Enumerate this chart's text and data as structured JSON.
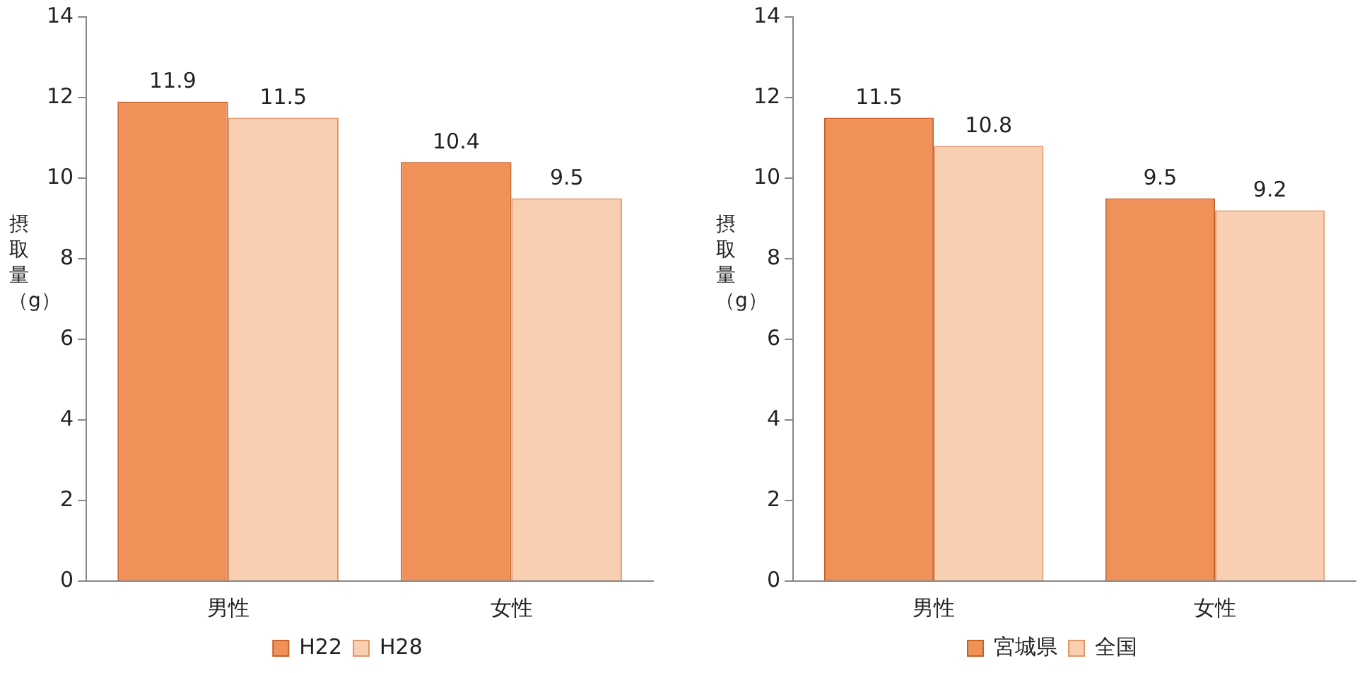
{
  "chart_data": [
    {
      "type": "bar",
      "ylabel": "摂取量（g）",
      "categories": [
        "男性",
        "女性"
      ],
      "series": [
        {
          "name": "H22",
          "color": "#f0915a",
          "values": [
            11.9,
            10.4
          ]
        },
        {
          "name": "H28",
          "color": "#f8cfb0",
          "values": [
            11.5,
            9.5
          ]
        }
      ],
      "ylim": [
        0,
        14
      ],
      "yticks": [
        0,
        2,
        4,
        6,
        8,
        10,
        12,
        14
      ],
      "grid": false,
      "legend": "bottom",
      "data_labels": true
    },
    {
      "type": "bar",
      "ylabel": "摂取量（g）",
      "categories": [
        "男性",
        "女性"
      ],
      "series": [
        {
          "name": "宮城県",
          "color": "#f0915a",
          "values": [
            11.5,
            9.5
          ]
        },
        {
          "name": "全国",
          "color": "#f8cfb0",
          "values": [
            10.8,
            9.2
          ]
        }
      ],
      "ylim": [
        0,
        14
      ],
      "yticks": [
        0,
        2,
        4,
        6,
        8,
        10,
        12,
        14
      ],
      "grid": false,
      "legend": "bottom",
      "data_labels": true
    }
  ]
}
